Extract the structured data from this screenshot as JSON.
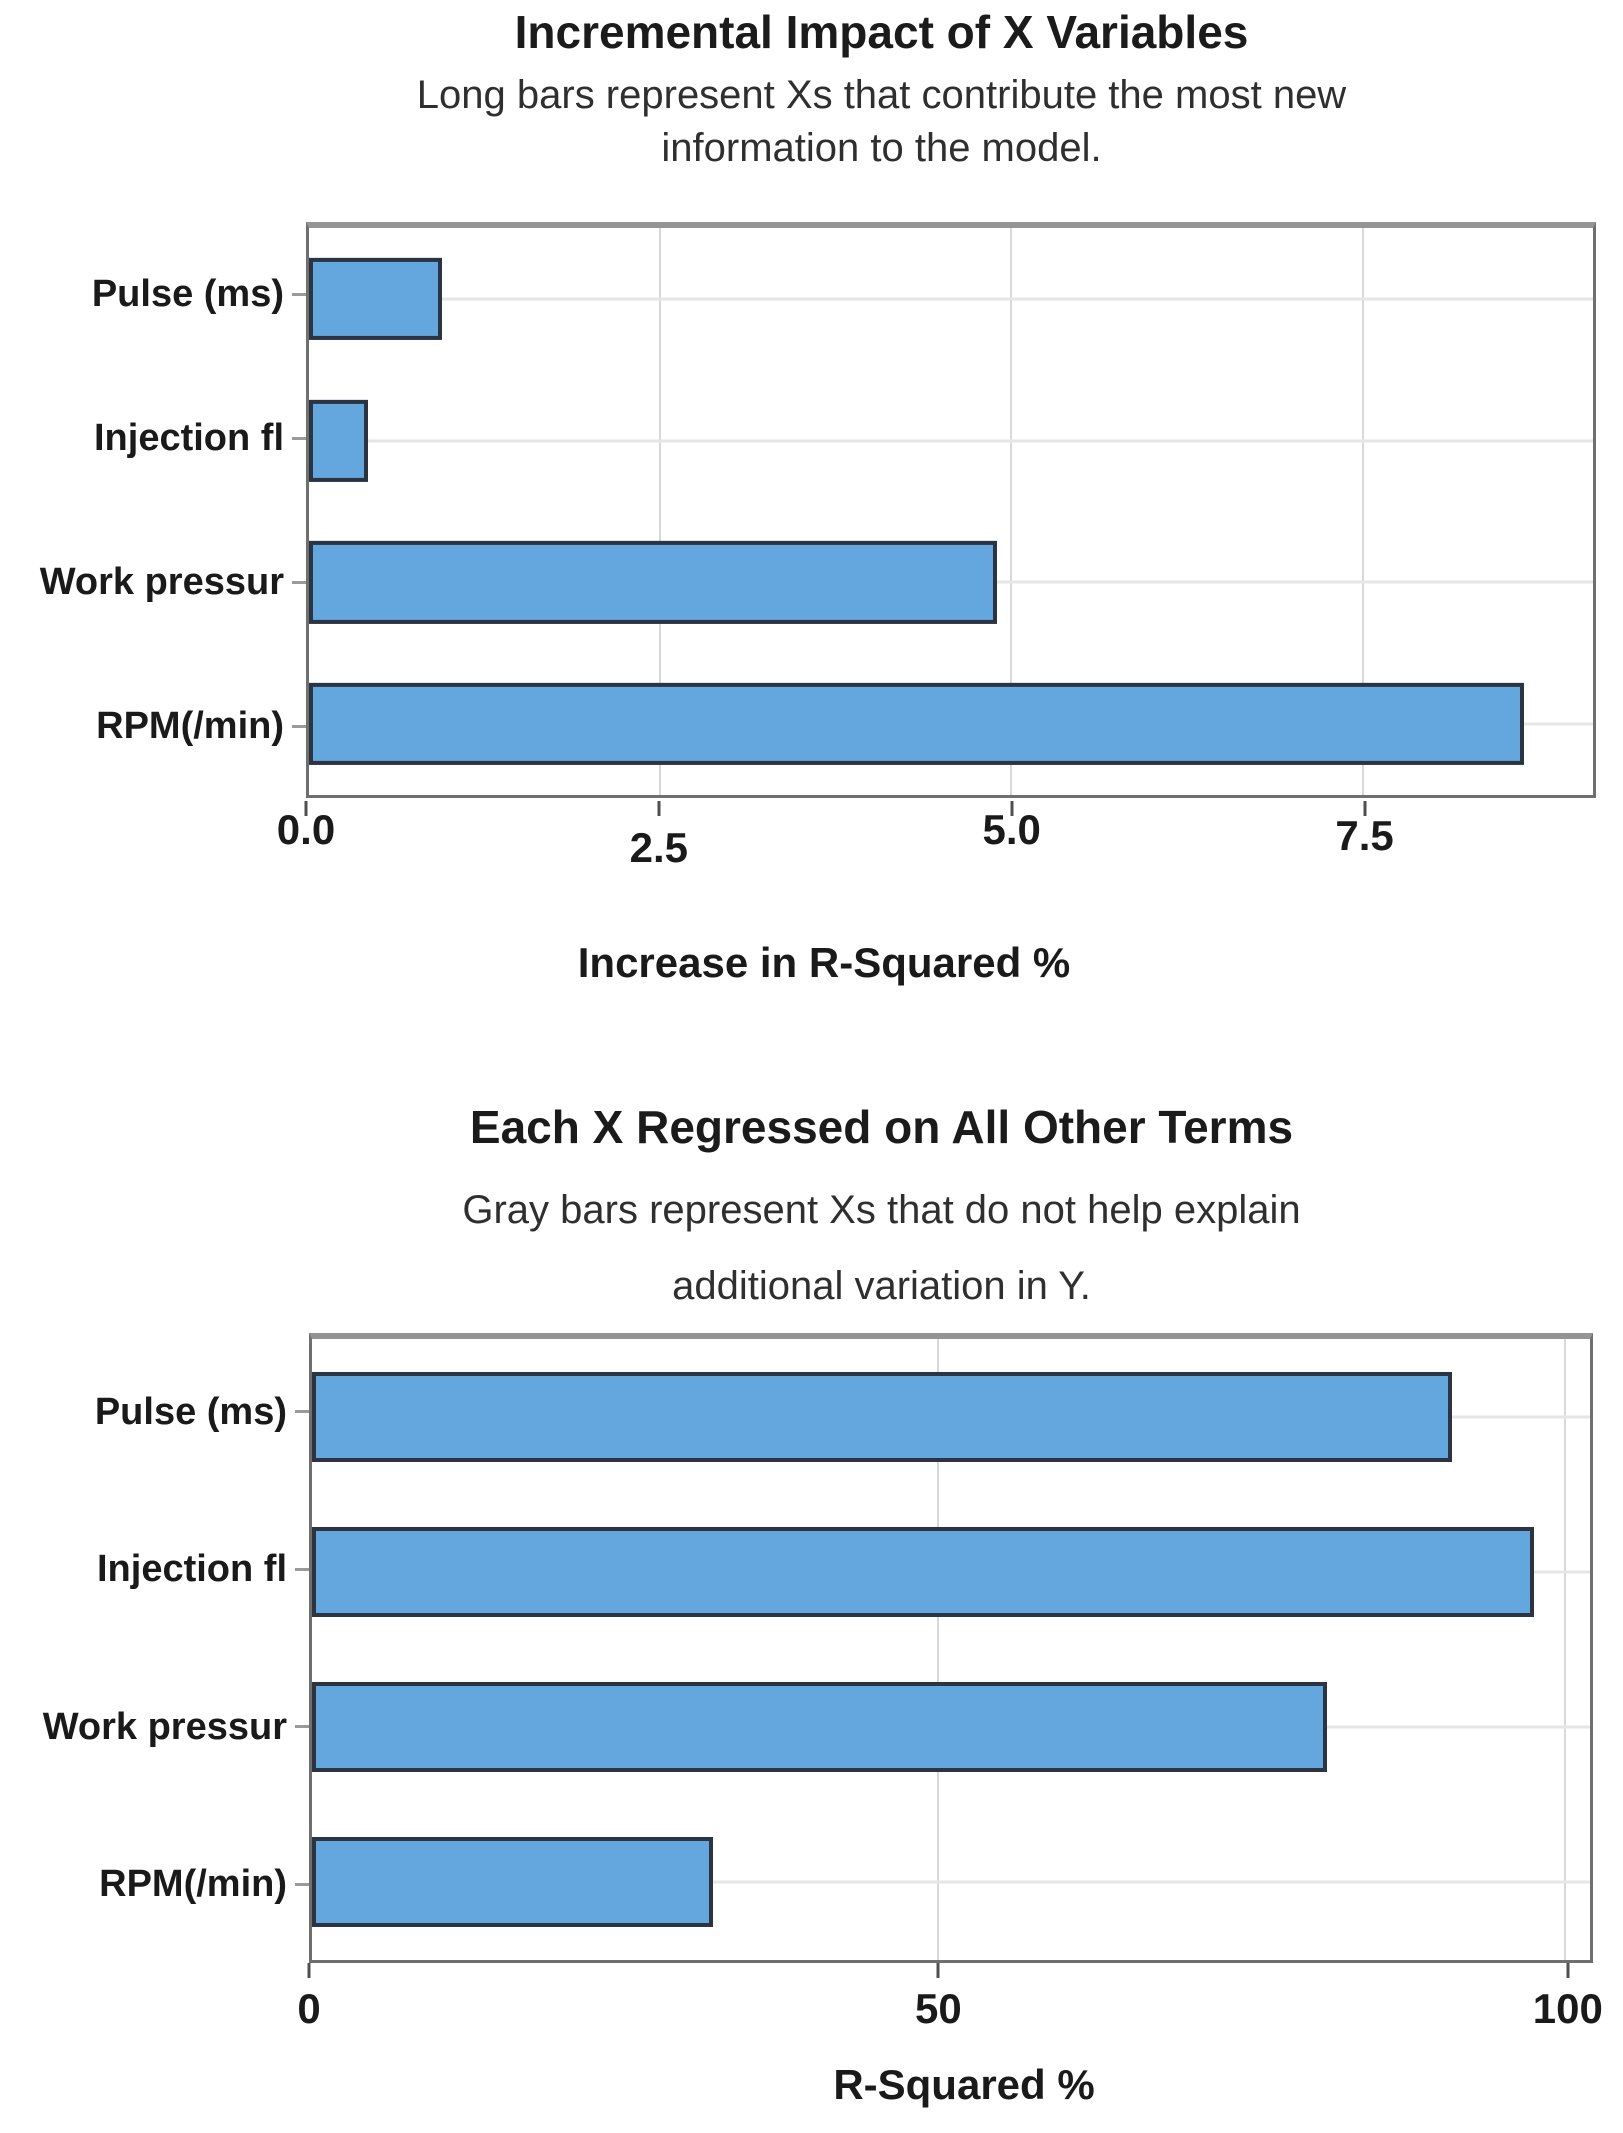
{
  "page": {
    "background_color": "#ffffff",
    "text_color": "#1a1a1a"
  },
  "chart_data": [
    {
      "type": "bar",
      "orientation": "horizontal",
      "title": "Incremental Impact of X Variables",
      "subtitle_lines": [
        "Long bars represent Xs that contribute the most new",
        "information to the model."
      ],
      "categories": [
        "Pulse (ms)",
        "Injection fl",
        "Work pressur",
        "RPM(/min)"
      ],
      "values": [
        0.95,
        0.42,
        4.9,
        8.65
      ],
      "xlabel": "Increase in R-Squared %",
      "xlim": [
        0,
        9.14
      ],
      "xticks": [
        {
          "label": "0.0",
          "value": 0
        },
        {
          "label": "2.5",
          "value": 2.5
        },
        {
          "label": "5.0",
          "value": 5
        },
        {
          "label": "7.5",
          "value": 7.5
        }
      ],
      "tick_label_y_offsets": [
        0,
        18,
        0,
        6
      ],
      "grid": true,
      "legend": "none",
      "bar_color": "#64a7de",
      "bar_border_color": "#2b3440"
    },
    {
      "type": "bar",
      "orientation": "horizontal",
      "title": "Each X Regressed on All Other Terms",
      "subtitle_lines": [
        "Gray bars represent Xs that do not help explain",
        "additional variation in Y."
      ],
      "categories": [
        "Pulse (ms)",
        "Injection fl",
        "Work pressur",
        "RPM(/min)"
      ],
      "values": [
        91,
        97.5,
        81,
        32
      ],
      "xlabel": "R-Squared %",
      "xlim": [
        0,
        102
      ],
      "xticks": [
        {
          "label": "0",
          "value": 0
        },
        {
          "label": "50",
          "value": 50
        },
        {
          "label": "100",
          "value": 100
        }
      ],
      "tick_label_y_offsets": [
        0,
        0,
        0
      ],
      "grid": true,
      "legend": "none",
      "bar_color": "#64a7de",
      "bar_border_color": "#2b3440"
    }
  ]
}
